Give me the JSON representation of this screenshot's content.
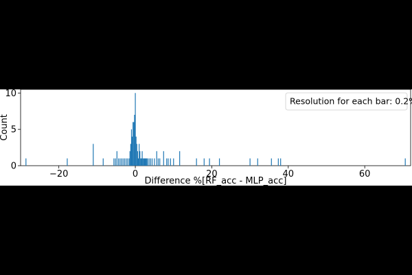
{
  "chart_data": {
    "type": "bar",
    "title": "",
    "xlabel": "Difference %[RF_acc - MLP_acc]",
    "ylabel": "Count",
    "xlim": [
      -30,
      72
    ],
    "ylim": [
      0,
      10.5
    ],
    "xticks": [
      -20,
      0,
      20,
      40,
      60
    ],
    "xtick_labels": [
      "−20",
      "0",
      "20",
      "40",
      "60"
    ],
    "yticks": [
      0,
      5,
      10
    ],
    "ytick_labels": [
      "0",
      "5",
      "10"
    ],
    "bar_width": 0.2,
    "grid": false,
    "legend_placement": "top-right",
    "annotation": "Resolution for each bar: 0.2%",
    "bar_color": "#1f77b4",
    "x": [
      -28.6,
      -17.8,
      -11,
      -8.4,
      -5.6,
      -5.2,
      -4.8,
      -4.4,
      -4,
      -3.6,
      -3.2,
      -2.8,
      -2.4,
      -2,
      -1.6,
      -1.4,
      -1.2,
      -1,
      -0.8,
      -0.6,
      -0.4,
      -0.2,
      0,
      0.2,
      0.4,
      0.6,
      0.8,
      1,
      1.2,
      1.4,
      1.6,
      1.8,
      2,
      2.2,
      2.4,
      2.6,
      2.8,
      3,
      3.2,
      3.6,
      4,
      4.4,
      5,
      5.6,
      6,
      6.4,
      7.4,
      8.2,
      8.6,
      9.2,
      10,
      11.6,
      16,
      18,
      19.4,
      22,
      30,
      32,
      35.6,
      37.4,
      38,
      70.6
    ],
    "y": [
      1,
      1,
      3,
      1,
      1,
      1,
      2,
      1,
      1,
      1,
      1,
      1,
      1,
      1,
      1,
      2,
      3,
      5,
      4,
      6,
      6,
      7,
      10,
      4,
      3,
      2,
      1,
      3,
      2,
      1,
      1,
      2,
      1,
      1,
      1,
      1,
      1,
      1,
      1,
      1,
      1,
      1,
      1,
      2,
      1,
      1,
      2,
      1,
      1,
      1,
      1,
      2,
      1,
      1,
      1,
      1,
      1,
      1,
      1,
      1,
      1,
      1
    ]
  }
}
